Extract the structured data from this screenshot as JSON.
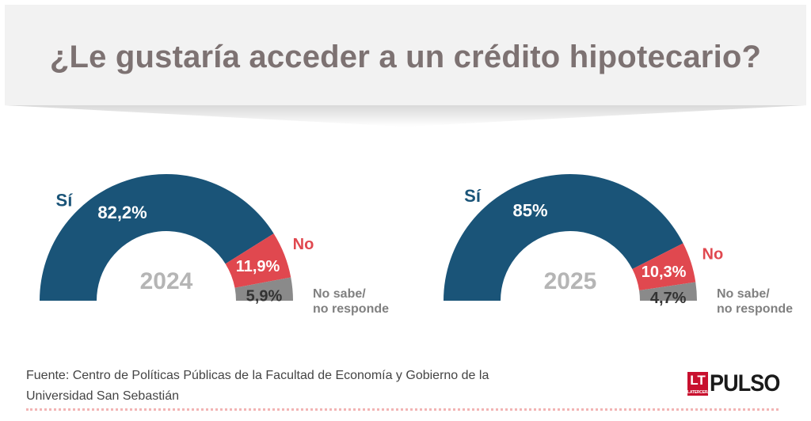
{
  "title": "¿Le gustaría acceder a un crédito hipotecario?",
  "colors": {
    "si": "#1a5478",
    "no": "#e0484f",
    "ns": "#8a8a8a",
    "year": "#b5b5b5",
    "banner": "#f2f2f2"
  },
  "chart_data": [
    {
      "type": "pie",
      "subtype": "half-donut",
      "center_label": "2024",
      "slices": [
        {
          "label": "Sí",
          "value": 82.2,
          "value_label": "82,2%"
        },
        {
          "label": "No",
          "value": 11.9,
          "value_label": "11,9%"
        },
        {
          "label": "No sabe/\nno responde",
          "label_line1": "No sabe/",
          "label_line2": "no responde",
          "value": 5.9,
          "value_label": "5,9%"
        }
      ]
    },
    {
      "type": "pie",
      "subtype": "half-donut",
      "center_label": "2025",
      "slices": [
        {
          "label": "Sí",
          "value": 85,
          "value_label": "85%"
        },
        {
          "label": "No",
          "value": 10.3,
          "value_label": "10,3%"
        },
        {
          "label": "No sabe/\nno responde",
          "label_line1": "No sabe/",
          "label_line2": "no responde",
          "value": 4.7,
          "value_label": "4,7%"
        }
      ]
    }
  ],
  "source": {
    "line1": "Fuente: Centro de Políticas Públicas de la Facultad de  Economía y Gobierno de la",
    "line2": "Universidad San Sebastián"
  },
  "logo": {
    "lt": "LT",
    "lt_sub": "LATERCERA",
    "brand": "PULSO"
  }
}
